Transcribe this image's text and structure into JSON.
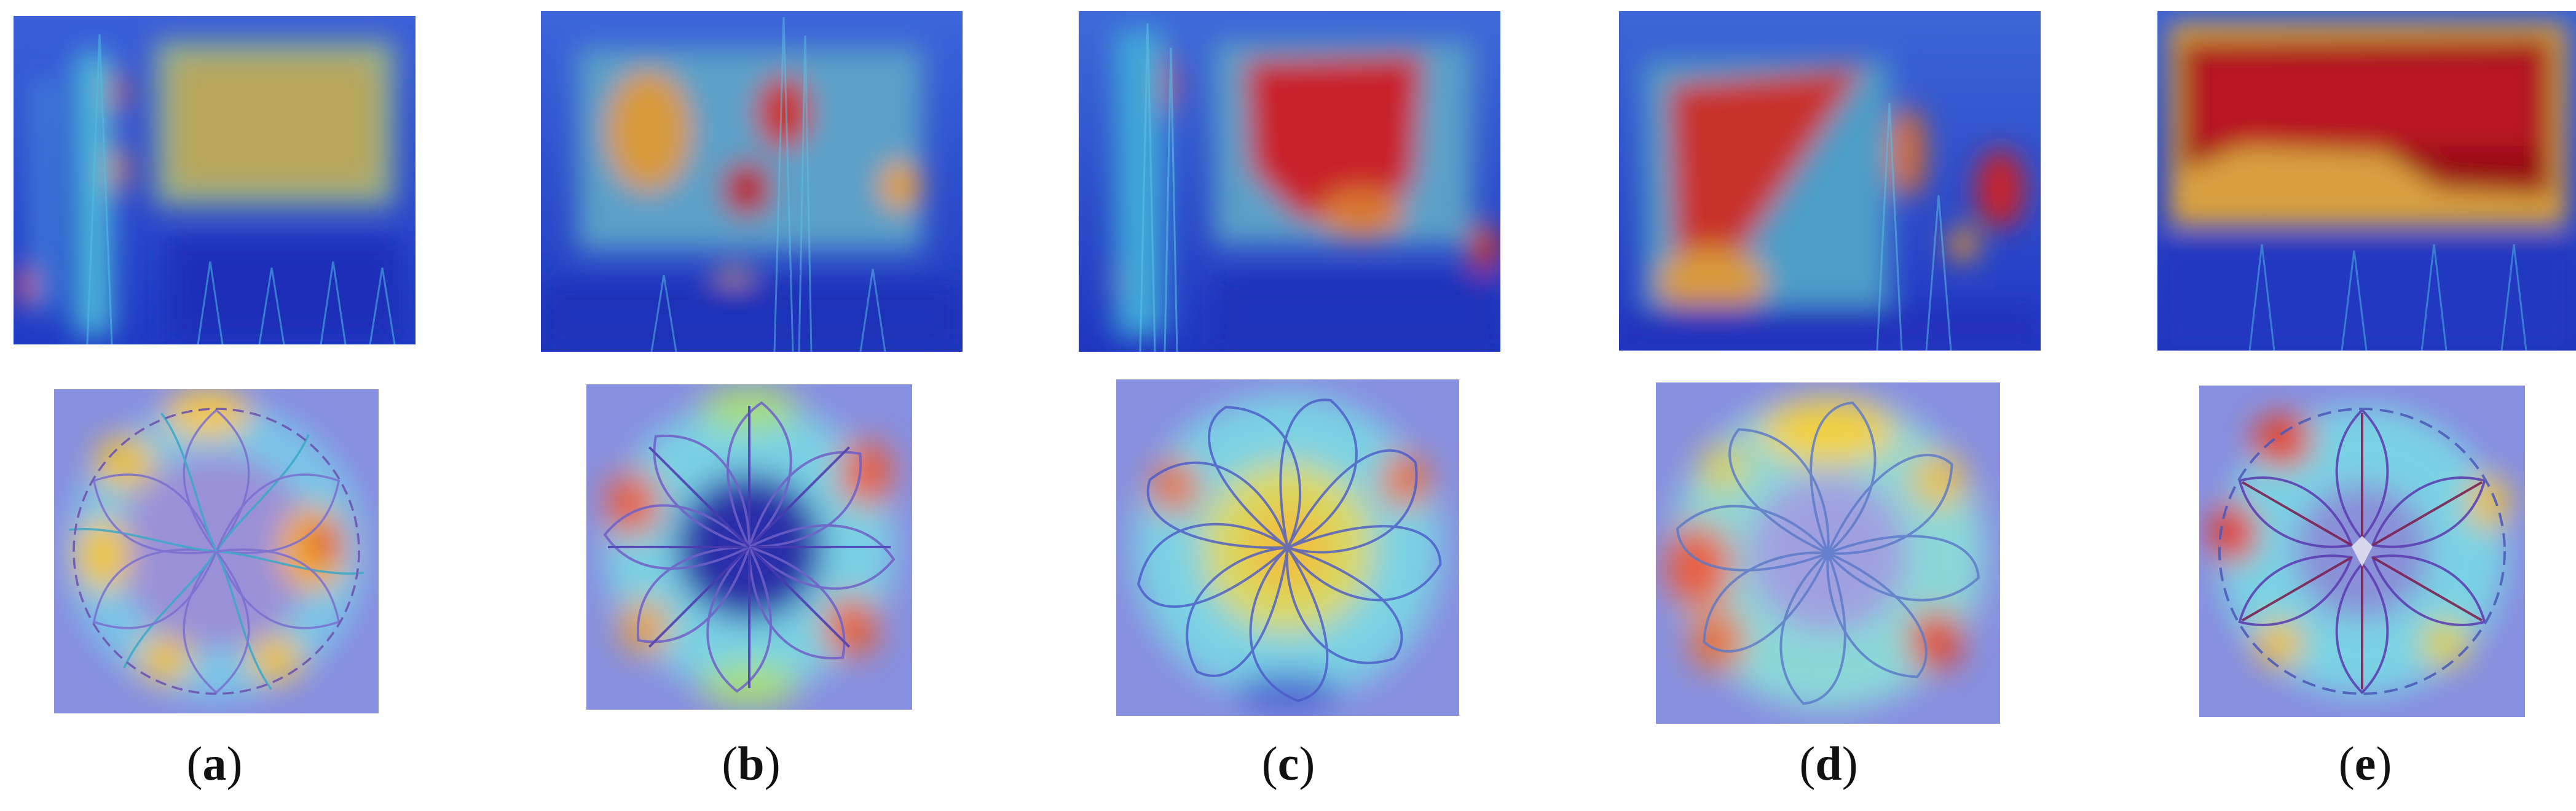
{
  "figure": {
    "panels": [
      {
        "id": "a",
        "caption": "a"
      },
      {
        "id": "b",
        "caption": "b"
      },
      {
        "id": "c",
        "caption": "c"
      },
      {
        "id": "d",
        "caption": "d"
      },
      {
        "id": "e",
        "caption": "e"
      }
    ],
    "colors": {
      "low": "#2236c8",
      "mid": "#3fb4e6",
      "warm": "#f0c040",
      "high": "#d9261c",
      "peak": "#8c0a14",
      "tint": "#8890e0"
    }
  }
}
